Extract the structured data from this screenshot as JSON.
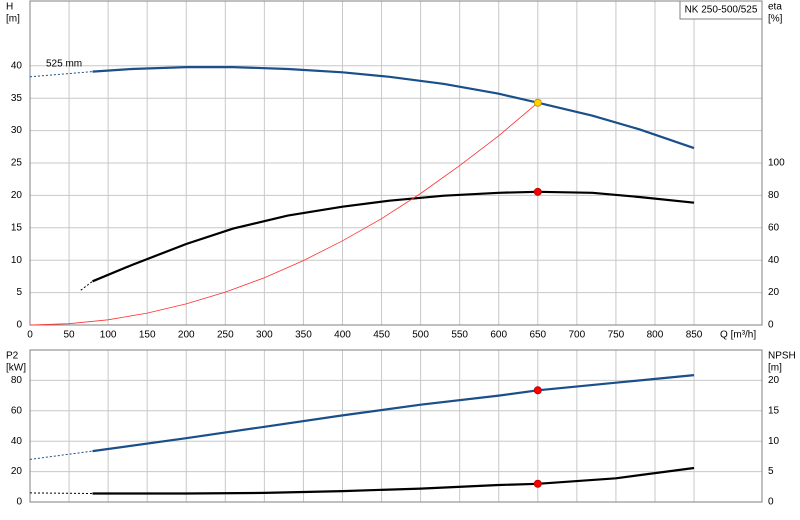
{
  "chart_data": [
    {
      "type": "line",
      "title": "NK 250-500/525",
      "ylabel": [
        "H",
        "[m]"
      ],
      "y2label": [
        "eta",
        "[%]"
      ],
      "xlabel": "Q [m³/h]",
      "annotations": [
        "525 mm"
      ],
      "xlim": [
        0,
        937
      ],
      "xticks": [
        0,
        50,
        100,
        150,
        200,
        250,
        300,
        350,
        400,
        450,
        500,
        550,
        600,
        650,
        700,
        750,
        800,
        850
      ],
      "ylim": [
        0,
        50
      ],
      "yticks": [
        0,
        5,
        10,
        15,
        20,
        25,
        30,
        35,
        40
      ],
      "y2lim": [
        0,
        200
      ],
      "y2ticks": [
        0,
        20,
        40,
        60,
        80,
        100
      ],
      "grid": true,
      "series": [
        {
          "color": "#1a4f8a",
          "style": "solid",
          "x": [
            80,
            130,
            200,
            260,
            330,
            400,
            460,
            530,
            600,
            650,
            720,
            780,
            850
          ],
          "values": [
            39.1,
            39.5,
            39.8,
            39.8,
            39.5,
            39.0,
            38.3,
            37.2,
            35.7,
            34.3,
            32.3,
            30.2,
            27.3
          ]
        },
        {
          "color": "#1a4f8a",
          "style": "dashed",
          "x": [
            0,
            80
          ],
          "values": [
            38.3,
            39.1
          ]
        },
        {
          "color": "#000000",
          "style": "solid",
          "axis": "y2",
          "x": [
            80,
            130,
            200,
            260,
            330,
            400,
            460,
            530,
            600,
            650,
            720,
            780,
            850
          ],
          "values": [
            27,
            37,
            50,
            59.5,
            67.5,
            73,
            76.7,
            79.8,
            81.6,
            82.2,
            81.6,
            79,
            75.5
          ]
        },
        {
          "color": "#000000",
          "style": "dashed",
          "axis": "y2",
          "x": [
            65,
            80
          ],
          "values": [
            21.5,
            27
          ]
        },
        {
          "color": "#ff3030",
          "style": "thin",
          "x": [
            0,
            50,
            100,
            150,
            200,
            250,
            300,
            350,
            400,
            450,
            500,
            550,
            600,
            650
          ],
          "values": [
            0,
            0.2,
            0.81,
            1.83,
            3.25,
            5.07,
            7.3,
            9.94,
            13.0,
            16.4,
            20.3,
            24.6,
            29.2,
            34.3
          ]
        },
        {
          "color": "#ffd700",
          "style": "marker",
          "x": [
            650
          ],
          "values": [
            34.3
          ]
        },
        {
          "color": "#ff0000",
          "style": "marker",
          "axis": "y2",
          "x": [
            650
          ],
          "values": [
            82.2
          ]
        }
      ]
    },
    {
      "type": "line",
      "ylabel": [
        "P2",
        "[kW]"
      ],
      "y2label": [
        "NPSH",
        "[m]"
      ],
      "xlim": [
        0,
        937
      ],
      "xticks": [
        0,
        50,
        100,
        150,
        200,
        250,
        300,
        350,
        400,
        450,
        500,
        550,
        600,
        650,
        700,
        750,
        800,
        850
      ],
      "ylim": [
        0,
        100
      ],
      "yticks": [
        0,
        20,
        40,
        60,
        80
      ],
      "y2lim": [
        0,
        25
      ],
      "y2ticks": [
        0,
        5,
        10,
        15,
        20
      ],
      "grid": true,
      "series": [
        {
          "color": "#1a4f8a",
          "style": "solid",
          "x": [
            80,
            200,
            300,
            400,
            500,
            600,
            650,
            750,
            850
          ],
          "values": [
            33.5,
            42,
            49.5,
            57,
            64,
            70,
            73.5,
            78.5,
            83.5
          ]
        },
        {
          "color": "#1a4f8a",
          "style": "dashed",
          "x": [
            0,
            80
          ],
          "values": [
            28,
            33.5
          ]
        },
        {
          "color": "#000000",
          "style": "solid",
          "axis": "y2",
          "x": [
            80,
            200,
            300,
            400,
            500,
            600,
            650,
            750,
            850
          ],
          "values": [
            1.4,
            1.4,
            1.5,
            1.8,
            2.2,
            2.8,
            3.0,
            3.9,
            5.6
          ]
        },
        {
          "color": "#000000",
          "style": "dashed",
          "axis": "y2",
          "x": [
            0,
            80
          ],
          "values": [
            1.5,
            1.4
          ]
        },
        {
          "color": "#ff0000",
          "style": "marker",
          "x": [
            650
          ],
          "values": [
            73.5
          ]
        },
        {
          "color": "#ff0000",
          "style": "marker",
          "axis": "y2",
          "x": [
            650
          ],
          "values": [
            3.0
          ]
        }
      ]
    }
  ]
}
